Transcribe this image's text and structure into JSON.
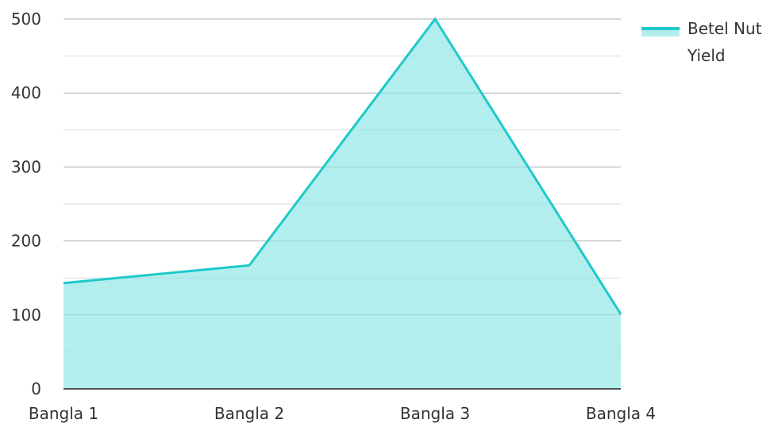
{
  "chart_data": {
    "type": "area",
    "title": "",
    "xlabel": "",
    "ylabel": "",
    "categories": [
      "Bangla 1",
      "Bangla 2",
      "Bangla 3",
      "Bangla 4"
    ],
    "series": [
      {
        "name": "Betel Nut Yield",
        "values": [
          143,
          167,
          500,
          101
        ],
        "line_color": "#1ec9c9",
        "fill_color": "#b3eeee"
      }
    ],
    "ylim": [
      0,
      500
    ],
    "y_ticks": [
      0,
      100,
      200,
      300,
      400,
      500
    ],
    "grid": true,
    "legend_position": "top-right",
    "legend_lines": [
      "Betel Nut",
      "Yield"
    ]
  }
}
